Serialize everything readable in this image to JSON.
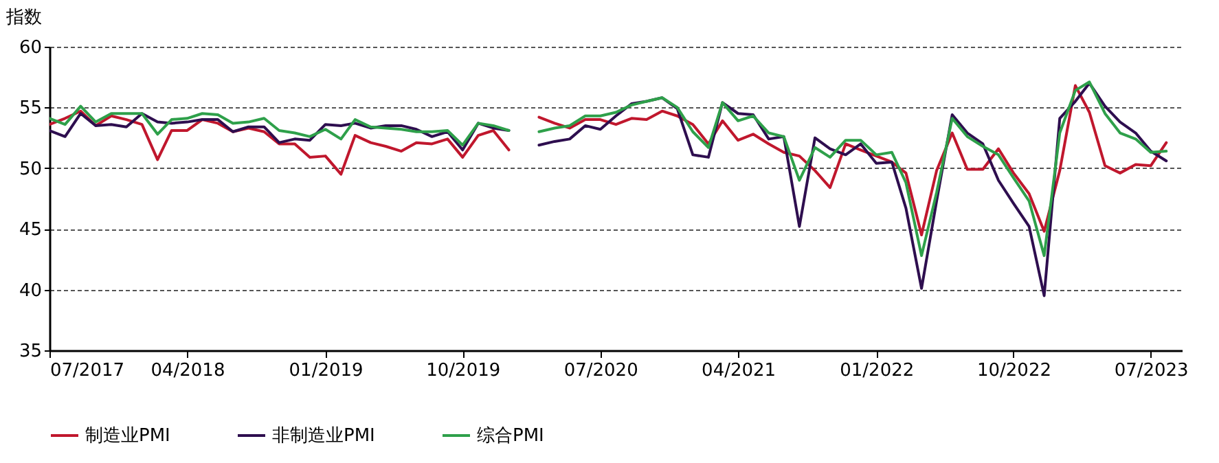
{
  "chart_data": {
    "type": "line",
    "ylabel": "指数",
    "x": [
      "2017-07",
      "2017-08",
      "2017-09",
      "2017-10",
      "2017-11",
      "2017-12",
      "2018-01",
      "2018-02",
      "2018-03",
      "2018-04",
      "2018-05",
      "2018-06",
      "2018-07",
      "2018-08",
      "2018-09",
      "2018-10",
      "2018-11",
      "2018-12",
      "2019-01",
      "2019-02",
      "2019-03",
      "2019-04",
      "2019-05",
      "2019-06",
      "2019-07",
      "2019-08",
      "2019-09",
      "2019-10",
      "2019-11",
      "2019-12",
      "2020-01",
      "2020-02",
      "2020-03",
      "2020-04",
      "2020-05",
      "2020-06",
      "2020-07",
      "2020-08",
      "2020-09",
      "2020-10",
      "2020-11",
      "2020-12",
      "2021-01",
      "2021-02",
      "2021-03",
      "2021-04",
      "2021-05",
      "2021-06",
      "2021-07",
      "2021-08",
      "2021-09",
      "2021-10",
      "2021-11",
      "2021-12",
      "2022-01",
      "2022-02",
      "2022-03",
      "2022-04",
      "2022-05",
      "2022-06",
      "2022-07",
      "2022-08",
      "2022-09",
      "2022-10",
      "2022-11",
      "2022-12",
      "2023-01",
      "2023-02",
      "2023-03",
      "2023-04",
      "2023-05",
      "2023-06",
      "2023-07",
      "2023-08"
    ],
    "series": [
      {
        "name": "制造业PMI",
        "color": "#c0172d",
        "values": [
          53.6,
          54.1,
          54.7,
          53.5,
          54.3,
          54.0,
          53.6,
          50.7,
          53.1,
          53.1,
          54.0,
          53.7,
          53.0,
          53.3,
          53.0,
          52.0,
          52.0,
          50.9,
          51.0,
          49.5,
          52.7,
          52.1,
          51.8,
          51.4,
          52.1,
          52.0,
          52.4,
          50.9,
          52.7,
          53.1,
          51.5,
          null,
          54.2,
          53.7,
          53.3,
          54.0,
          54.0,
          53.6,
          54.1,
          54.0,
          54.7,
          54.3,
          53.6,
          52.0,
          53.9,
          52.3,
          52.8,
          52.0,
          51.3,
          51.0,
          49.8,
          48.4,
          52.0,
          51.5,
          51.0,
          50.5,
          49.6,
          44.5,
          49.8,
          52.9,
          49.9,
          49.9,
          51.6,
          49.6,
          47.9,
          44.8,
          49.8,
          56.8,
          54.6,
          50.2,
          49.6,
          50.3,
          50.2,
          52.1
        ]
      },
      {
        "name": "非制造业PMI",
        "color": "#2e0e4f",
        "values": [
          53.1,
          52.6,
          54.5,
          53.5,
          53.6,
          53.4,
          54.5,
          53.8,
          53.7,
          53.8,
          54.0,
          54.0,
          53.0,
          53.4,
          53.4,
          52.1,
          52.4,
          52.3,
          53.6,
          53.5,
          53.7,
          53.3,
          53.5,
          53.5,
          53.2,
          52.6,
          53.0,
          51.5,
          53.7,
          53.3,
          53.1,
          null,
          51.9,
          52.2,
          52.4,
          53.5,
          53.2,
          54.3,
          55.3,
          55.5,
          55.8,
          54.9,
          51.1,
          50.9,
          55.4,
          54.5,
          54.4,
          52.4,
          52.6,
          45.2,
          52.5,
          51.6,
          51.1,
          52.0,
          50.4,
          50.5,
          46.7,
          40.1,
          47.3,
          54.4,
          52.9,
          52.0,
          49.0,
          47.1,
          45.2,
          39.5,
          54.1,
          55.5,
          57.0,
          55.1,
          53.8,
          52.9,
          51.4,
          50.6
        ]
      },
      {
        "name": "综合PMI",
        "color": "#2ea04a",
        "values": [
          54.1,
          53.6,
          55.1,
          53.8,
          54.5,
          54.5,
          54.5,
          52.8,
          54.0,
          54.1,
          54.5,
          54.4,
          53.7,
          53.8,
          54.1,
          53.1,
          52.9,
          52.6,
          53.2,
          52.4,
          54.0,
          53.4,
          53.3,
          53.2,
          53.0,
          53.0,
          53.1,
          51.9,
          53.7,
          53.5,
          53.1,
          null,
          53.0,
          53.3,
          53.5,
          54.3,
          54.3,
          54.6,
          55.2,
          55.5,
          55.8,
          55.0,
          53.0,
          51.7,
          55.4,
          53.9,
          54.3,
          52.9,
          52.6,
          49.0,
          51.7,
          50.9,
          52.3,
          52.3,
          51.1,
          51.3,
          48.8,
          42.8,
          48.0,
          54.1,
          52.6,
          51.8,
          51.1,
          49.2,
          47.3,
          42.8,
          52.9,
          56.4,
          57.1,
          54.5,
          52.9,
          52.4,
          51.3,
          51.4
        ]
      }
    ],
    "xlim": [
      "2017-07",
      "2023-09"
    ],
    "xticks": [
      {
        "value": "2017-07",
        "label": "07/2017"
      },
      {
        "value": "2018-04",
        "label": "04/2018"
      },
      {
        "value": "2019-01",
        "label": "01/2019"
      },
      {
        "value": "2019-10",
        "label": "10/2019"
      },
      {
        "value": "2020-07",
        "label": "07/2020"
      },
      {
        "value": "2021-04",
        "label": "04/2021"
      },
      {
        "value": "2022-01",
        "label": "01/2022"
      },
      {
        "value": "2022-10",
        "label": "10/2022"
      },
      {
        "value": "2023-07",
        "label": "07/2023"
      }
    ],
    "ylim": [
      35,
      60
    ],
    "yticks": [
      35,
      40,
      45,
      50,
      55,
      60
    ],
    "grid": "y",
    "legend": "bottom"
  }
}
